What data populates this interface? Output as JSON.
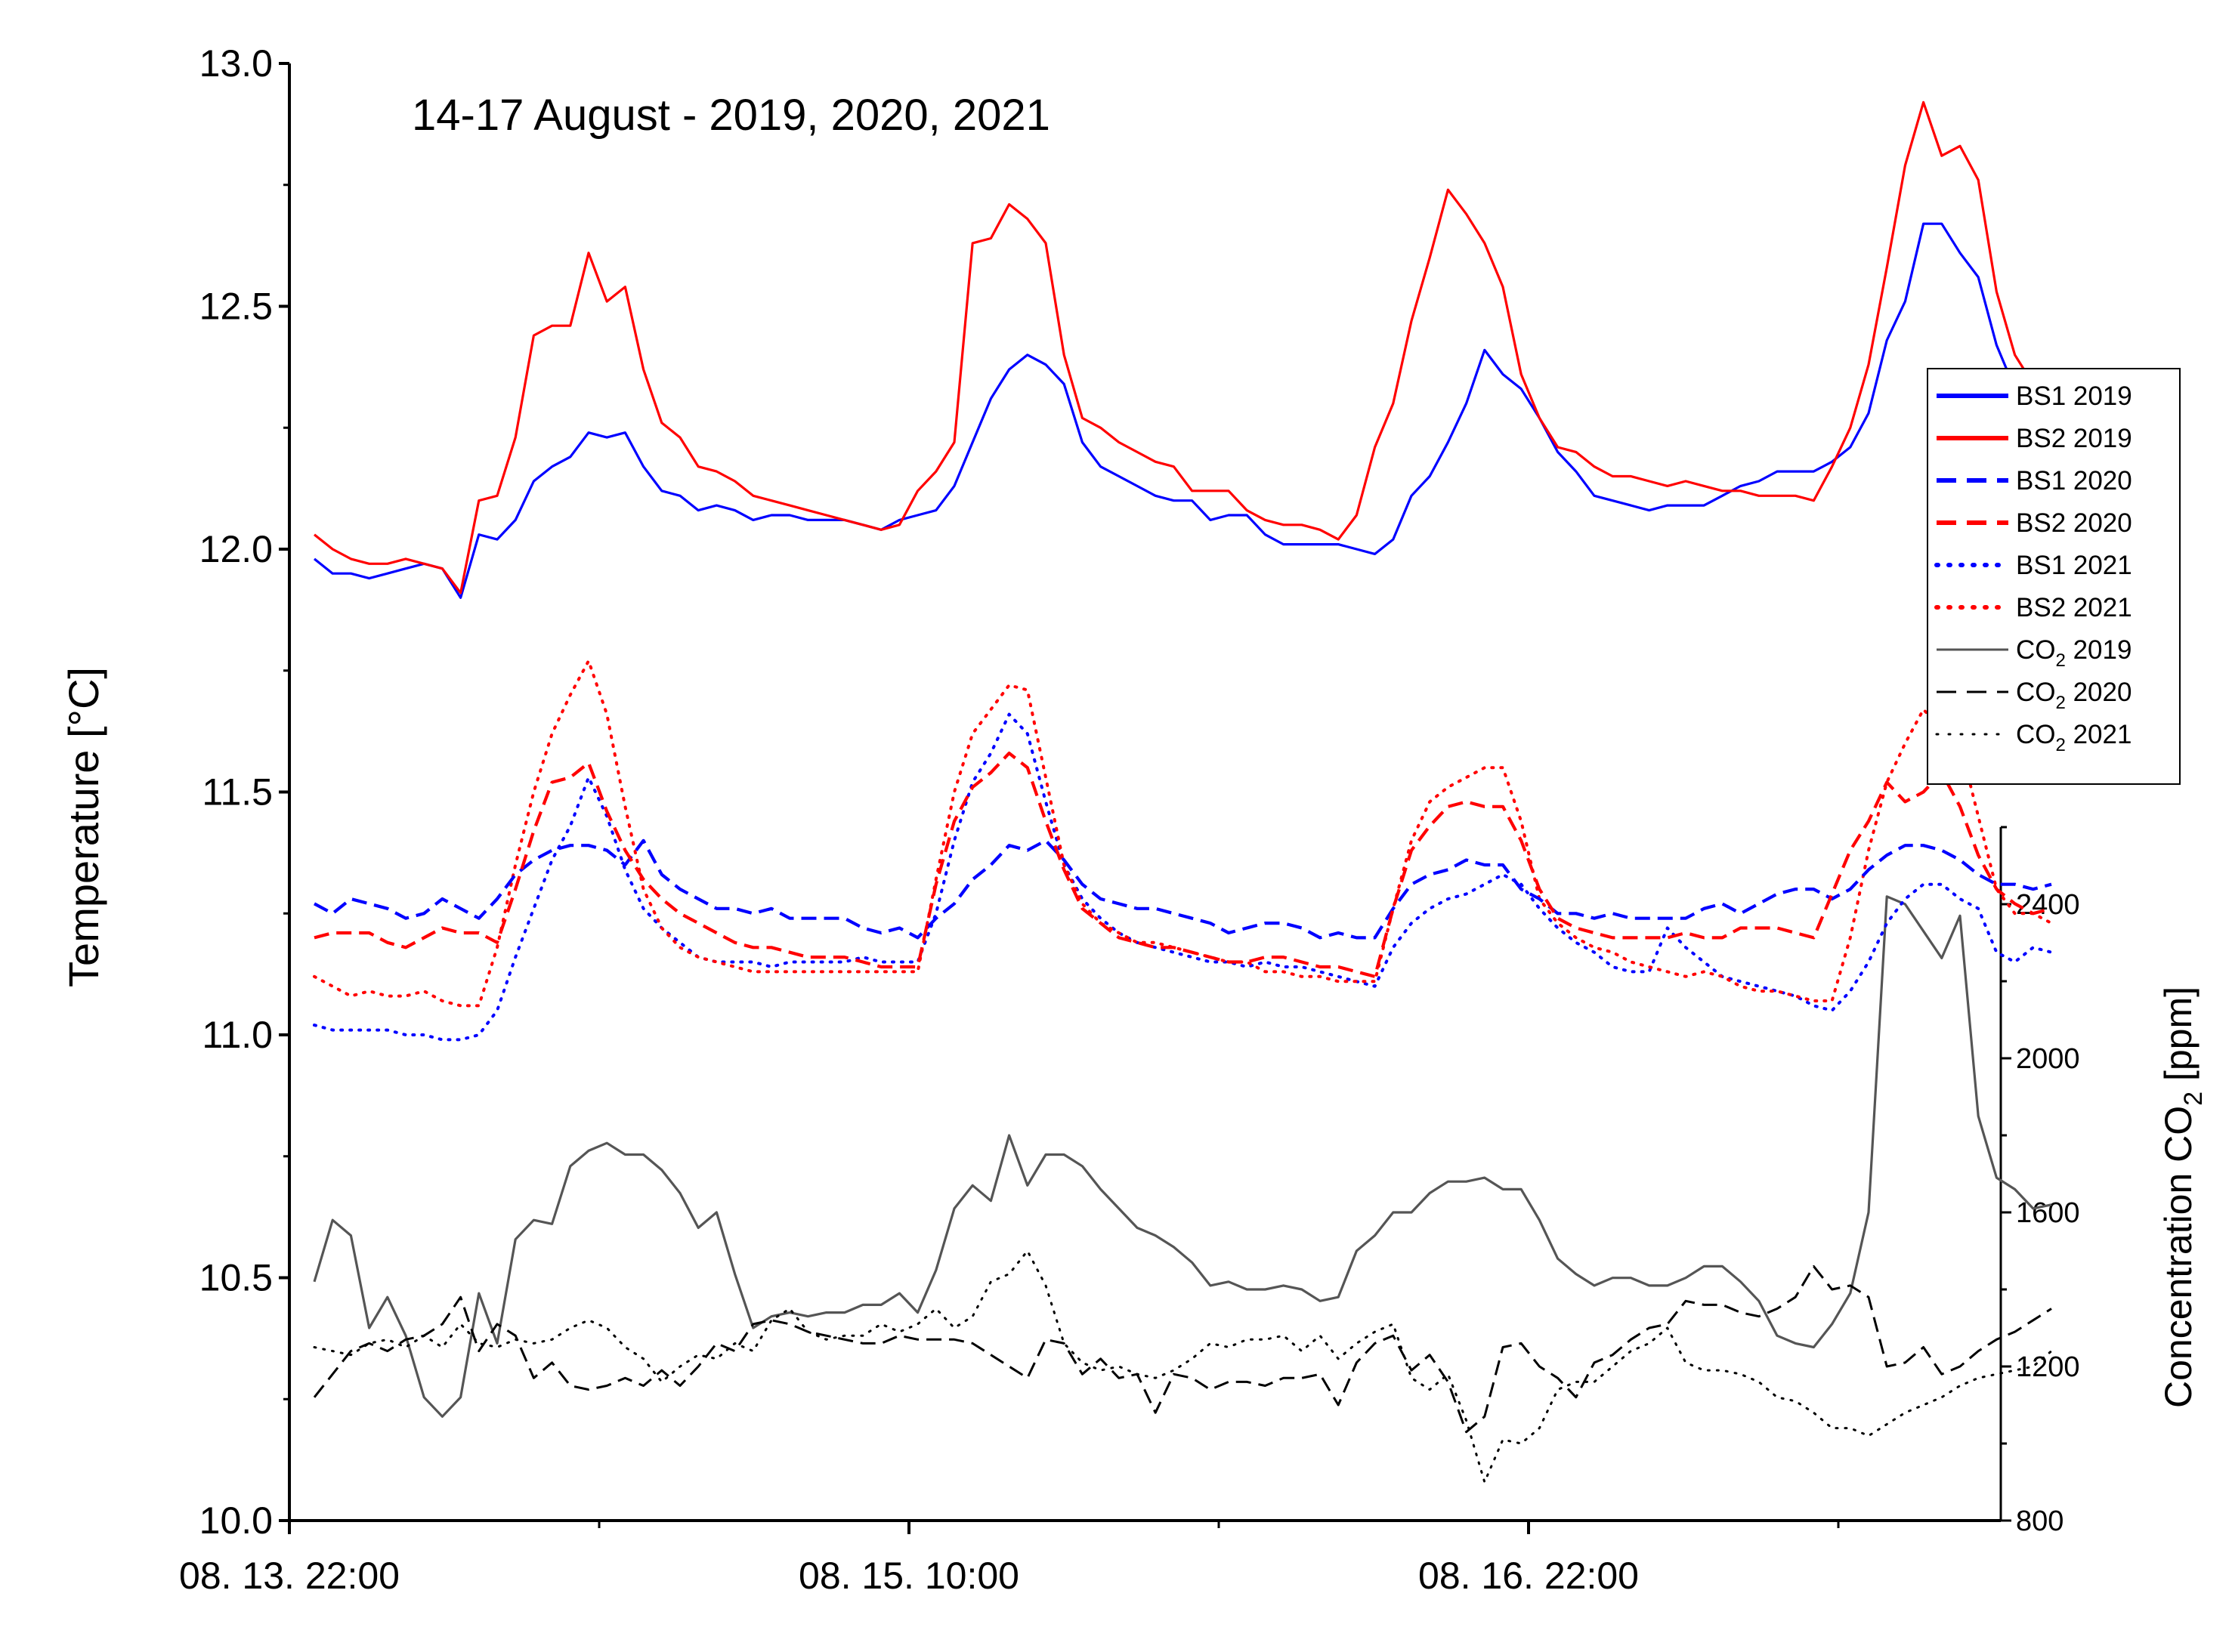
{
  "chart_data": {
    "type": "line",
    "title": "14-17 August - 2019, 2020, 2021",
    "xlabel": "",
    "ylabel": "Temperature [°C]",
    "y2label": "Concentration CO2 [ppm]",
    "y2label_parts": {
      "prefix": "Concentration CO",
      "sub": "2",
      "suffix": " [ppm]"
    },
    "x_ticks": [
      "08. 13. 22:00",
      "08. 15. 10:00",
      "08. 16. 22:00"
    ],
    "ylim": [
      10.0,
      13.0
    ],
    "y_ticks": [
      "10.0",
      "10.5",
      "11.0",
      "11.5",
      "12.0",
      "12.5",
      "13.0"
    ],
    "y2lim": [
      800,
      2600
    ],
    "y2_ticks": [
      "800",
      "1200",
      "1600",
      "2000",
      "2400"
    ],
    "legend_position": "right",
    "series": [
      {
        "name": "BS1 2019",
        "label": "BS1 2019",
        "axis": "left",
        "color": "#0000ff",
        "style": "solid",
        "values": [
          11.98,
          11.95,
          11.95,
          11.94,
          11.95,
          11.96,
          11.97,
          11.96,
          11.9,
          12.03,
          12.02,
          12.06,
          12.14,
          12.17,
          12.19,
          12.24,
          12.23,
          12.24,
          12.17,
          12.12,
          12.11,
          12.08,
          12.09,
          12.08,
          12.06,
          12.07,
          12.07,
          12.06,
          12.06,
          12.06,
          12.05,
          12.04,
          12.06,
          12.07,
          12.08,
          12.13,
          12.22,
          12.31,
          12.37,
          12.4,
          12.38,
          12.34,
          12.22,
          12.17,
          12.15,
          12.13,
          12.11,
          12.1,
          12.1,
          12.06,
          12.07,
          12.07,
          12.03,
          12.01,
          12.01,
          12.01,
          12.01,
          12.0,
          11.99,
          12.02,
          12.11,
          12.15,
          12.22,
          12.3,
          12.41,
          12.36,
          12.33,
          12.27,
          12.2,
          12.16,
          12.11,
          12.1,
          12.09,
          12.08,
          12.09,
          12.09,
          12.09,
          12.11,
          12.13,
          12.14,
          12.16,
          12.16,
          12.16,
          12.18,
          12.21,
          12.28,
          12.43,
          12.51,
          12.67,
          12.67,
          12.61,
          12.56,
          12.42,
          12.33,
          12.28,
          12.26
        ]
      },
      {
        "name": "BS2 2019",
        "label": "BS2 2019",
        "axis": "left",
        "color": "#ff0000",
        "style": "solid",
        "values": [
          12.03,
          12.0,
          11.98,
          11.97,
          11.97,
          11.98,
          11.97,
          11.96,
          11.91,
          12.1,
          12.11,
          12.23,
          12.44,
          12.46,
          12.46,
          12.61,
          12.51,
          12.54,
          12.37,
          12.26,
          12.23,
          12.17,
          12.16,
          12.14,
          12.11,
          12.1,
          12.09,
          12.08,
          12.07,
          12.06,
          12.05,
          12.04,
          12.05,
          12.12,
          12.16,
          12.22,
          12.63,
          12.64,
          12.71,
          12.68,
          12.63,
          12.4,
          12.27,
          12.25,
          12.22,
          12.2,
          12.18,
          12.17,
          12.12,
          12.12,
          12.12,
          12.08,
          12.06,
          12.05,
          12.05,
          12.04,
          12.02,
          12.07,
          12.21,
          12.3,
          12.47,
          12.6,
          12.74,
          12.69,
          12.63,
          12.54,
          12.36,
          12.27,
          12.21,
          12.2,
          12.17,
          12.15,
          12.15,
          12.14,
          12.13,
          12.14,
          12.13,
          12.12,
          12.12,
          12.11,
          12.11,
          12.11,
          12.1,
          12.17,
          12.25,
          12.38,
          12.58,
          12.79,
          12.92,
          12.81,
          12.83,
          12.76,
          12.53,
          12.4,
          12.34,
          12.3
        ]
      },
      {
        "name": "BS1 2020",
        "label": "BS1 2020",
        "axis": "left",
        "color": "#0000ff",
        "style": "dashed",
        "values": [
          11.27,
          11.25,
          11.28,
          11.27,
          11.26,
          11.24,
          11.25,
          11.28,
          11.26,
          11.24,
          11.28,
          11.33,
          11.36,
          11.38,
          11.39,
          11.39,
          11.38,
          11.35,
          11.4,
          11.33,
          11.3,
          11.28,
          11.26,
          11.26,
          11.25,
          11.26,
          11.24,
          11.24,
          11.24,
          11.24,
          11.22,
          11.21,
          11.22,
          11.2,
          11.24,
          11.27,
          11.32,
          11.35,
          11.39,
          11.38,
          11.4,
          11.36,
          11.31,
          11.28,
          11.27,
          11.26,
          11.26,
          11.25,
          11.24,
          11.23,
          11.21,
          11.22,
          11.23,
          11.23,
          11.22,
          11.2,
          11.21,
          11.2,
          11.2,
          11.26,
          11.31,
          11.33,
          11.34,
          11.36,
          11.35,
          11.35,
          11.3,
          11.28,
          11.25,
          11.25,
          11.24,
          11.25,
          11.24,
          11.24,
          11.24,
          11.24,
          11.26,
          11.27,
          11.25,
          11.27,
          11.29,
          11.3,
          11.3,
          11.28,
          11.3,
          11.34,
          11.37,
          11.39,
          11.39,
          11.38,
          11.36,
          11.33,
          11.31,
          11.31,
          11.3,
          11.31
        ]
      },
      {
        "name": "BS2 2020",
        "label": "BS2 2020",
        "axis": "left",
        "color": "#ff0000",
        "style": "dashed",
        "values": [
          11.2,
          11.21,
          11.21,
          11.21,
          11.19,
          11.18,
          11.2,
          11.22,
          11.21,
          11.21,
          11.19,
          11.3,
          11.42,
          11.52,
          11.53,
          11.56,
          11.46,
          11.38,
          11.32,
          11.28,
          11.25,
          11.23,
          11.21,
          11.19,
          11.18,
          11.18,
          11.17,
          11.16,
          11.16,
          11.16,
          11.15,
          11.14,
          11.14,
          11.14,
          11.31,
          11.44,
          11.51,
          11.54,
          11.58,
          11.55,
          11.44,
          11.34,
          11.26,
          11.23,
          11.2,
          11.19,
          11.18,
          11.18,
          11.17,
          11.16,
          11.15,
          11.15,
          11.16,
          11.16,
          11.15,
          11.14,
          11.14,
          11.13,
          11.12,
          11.26,
          11.38,
          11.43,
          11.47,
          11.48,
          11.47,
          11.47,
          11.4,
          11.3,
          11.24,
          11.22,
          11.21,
          11.2,
          11.2,
          11.2,
          11.2,
          11.21,
          11.2,
          11.2,
          11.22,
          11.22,
          11.22,
          11.21,
          11.2,
          11.29,
          11.38,
          11.44,
          11.52,
          11.48,
          11.5,
          11.54,
          11.47,
          11.37,
          11.3,
          11.27,
          11.25,
          11.26
        ]
      },
      {
        "name": "BS1 2021",
        "label": "BS1 2021",
        "axis": "left",
        "color": "#0000ff",
        "style": "dotted",
        "values": [
          11.02,
          11.01,
          11.01,
          11.01,
          11.01,
          11.0,
          11.0,
          10.99,
          10.99,
          11.0,
          11.05,
          11.16,
          11.26,
          11.36,
          11.43,
          11.53,
          11.45,
          11.34,
          11.26,
          11.22,
          11.19,
          11.16,
          11.15,
          11.15,
          11.15,
          11.14,
          11.15,
          11.15,
          11.15,
          11.15,
          11.16,
          11.15,
          11.15,
          11.15,
          11.25,
          11.4,
          11.52,
          11.58,
          11.66,
          11.62,
          11.48,
          11.35,
          11.28,
          11.24,
          11.21,
          11.19,
          11.18,
          11.17,
          11.16,
          11.15,
          11.15,
          11.14,
          11.15,
          11.14,
          11.14,
          11.13,
          11.12,
          11.11,
          11.1,
          11.18,
          11.23,
          11.26,
          11.28,
          11.29,
          11.31,
          11.33,
          11.31,
          11.26,
          11.22,
          11.19,
          11.17,
          11.14,
          11.13,
          11.13,
          11.22,
          11.18,
          11.15,
          11.12,
          11.11,
          11.1,
          11.09,
          11.08,
          11.06,
          11.05,
          11.09,
          11.15,
          11.23,
          11.28,
          11.31,
          11.31,
          11.28,
          11.26,
          11.17,
          11.15,
          11.18,
          11.17
        ]
      },
      {
        "name": "BS2 2021",
        "label": "BS2 2021",
        "axis": "left",
        "color": "#ff0000",
        "style": "dotted",
        "values": [
          11.12,
          11.1,
          11.08,
          11.09,
          11.08,
          11.08,
          11.09,
          11.07,
          11.06,
          11.06,
          11.18,
          11.35,
          11.5,
          11.62,
          11.7,
          11.77,
          11.66,
          11.47,
          11.3,
          11.22,
          11.18,
          11.16,
          11.15,
          11.14,
          11.13,
          11.13,
          11.13,
          11.13,
          11.13,
          11.13,
          11.13,
          11.13,
          11.13,
          11.13,
          11.32,
          11.5,
          11.62,
          11.67,
          11.72,
          11.71,
          11.53,
          11.35,
          11.27,
          11.23,
          11.21,
          11.19,
          11.19,
          11.18,
          11.17,
          11.16,
          11.15,
          11.15,
          11.13,
          11.13,
          11.12,
          11.12,
          11.11,
          11.11,
          11.11,
          11.26,
          11.4,
          11.48,
          11.51,
          11.53,
          11.55,
          11.55,
          11.44,
          11.28,
          11.23,
          11.2,
          11.18,
          11.17,
          11.15,
          11.14,
          11.13,
          11.12,
          11.13,
          11.12,
          11.1,
          11.09,
          11.09,
          11.08,
          11.07,
          11.07,
          11.2,
          11.38,
          11.52,
          11.6,
          11.67,
          11.63,
          11.6,
          11.45,
          11.3,
          11.25,
          11.25,
          11.23
        ]
      },
      {
        "name": "CO2 2019",
        "label": "CO",
        "label_sub": "2",
        "label_year": "2019",
        "axis": "right",
        "color": "#555555",
        "style": "solid",
        "values": [
          1420,
          1580,
          1540,
          1300,
          1380,
          1280,
          1120,
          1070,
          1120,
          1390,
          1260,
          1530,
          1580,
          1570,
          1720,
          1760,
          1780,
          1750,
          1750,
          1710,
          1650,
          1560,
          1600,
          1440,
          1300,
          1330,
          1340,
          1330,
          1340,
          1340,
          1360,
          1360,
          1390,
          1340,
          1450,
          1610,
          1670,
          1630,
          1800,
          1670,
          1750,
          1750,
          1720,
          1660,
          1610,
          1560,
          1540,
          1510,
          1470,
          1410,
          1420,
          1400,
          1400,
          1410,
          1400,
          1370,
          1380,
          1500,
          1540,
          1600,
          1600,
          1650,
          1680,
          1680,
          1690,
          1660,
          1660,
          1580,
          1480,
          1440,
          1410,
          1430,
          1430,
          1410,
          1410,
          1430,
          1460,
          1460,
          1420,
          1370,
          1280,
          1260,
          1250,
          1310,
          1390,
          1600,
          2420,
          2400,
          2330,
          2260,
          2370,
          1850,
          1690,
          1660,
          1610,
          1620
        ]
      },
      {
        "name": "CO2 2020",
        "label": "CO",
        "label_sub": "2",
        "label_year": "2020",
        "axis": "right",
        "color": "#000000",
        "style": "dashed",
        "values": [
          1120,
          1180,
          1240,
          1260,
          1240,
          1270,
          1280,
          1310,
          1380,
          1240,
          1310,
          1280,
          1170,
          1210,
          1150,
          1140,
          1150,
          1170,
          1150,
          1190,
          1150,
          1200,
          1260,
          1240,
          1310,
          1320,
          1310,
          1290,
          1280,
          1270,
          1260,
          1260,
          1280,
          1270,
          1270,
          1270,
          1260,
          1230,
          1200,
          1170,
          1270,
          1260,
          1180,
          1220,
          1170,
          1180,
          1080,
          1180,
          1170,
          1140,
          1160,
          1160,
          1150,
          1170,
          1170,
          1180,
          1100,
          1210,
          1260,
          1280,
          1190,
          1230,
          1160,
          1030,
          1070,
          1250,
          1260,
          1200,
          1170,
          1120,
          1210,
          1230,
          1270,
          1300,
          1310,
          1370,
          1360,
          1360,
          1340,
          1330,
          1350,
          1380,
          1460,
          1400,
          1410,
          1380,
          1200,
          1210,
          1250,
          1180,
          1200,
          1240,
          1270,
          1290,
          1320,
          1350
        ]
      },
      {
        "name": "CO2 2021",
        "label": "CO",
        "label_sub": "2",
        "label_year": "2021",
        "axis": "right",
        "color": "#000000",
        "style": "dotted",
        "values": [
          1250,
          1240,
          1230,
          1260,
          1270,
          1250,
          1280,
          1250,
          1310,
          1260,
          1250,
          1270,
          1260,
          1270,
          1300,
          1320,
          1300,
          1250,
          1220,
          1160,
          1200,
          1230,
          1220,
          1260,
          1240,
          1320,
          1350,
          1290,
          1270,
          1280,
          1280,
          1310,
          1290,
          1310,
          1350,
          1300,
          1330,
          1420,
          1440,
          1500,
          1410,
          1260,
          1210,
          1190,
          1200,
          1180,
          1170,
          1190,
          1220,
          1260,
          1250,
          1270,
          1270,
          1280,
          1240,
          1280,
          1220,
          1260,
          1290,
          1310,
          1170,
          1140,
          1180,
          1060,
          900,
          1010,
          1000,
          1040,
          1140,
          1160,
          1160,
          1200,
          1240,
          1260,
          1300,
          1210,
          1190,
          1190,
          1180,
          1160,
          1120,
          1110,
          1080,
          1040,
          1040,
          1020,
          1050,
          1080,
          1100,
          1120,
          1150,
          1170,
          1180,
          1190,
          1200,
          1240
        ]
      }
    ]
  }
}
